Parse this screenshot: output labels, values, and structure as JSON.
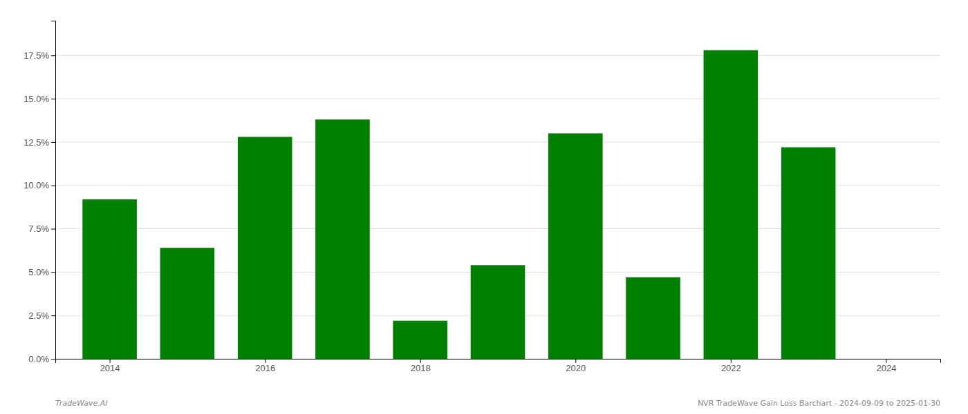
{
  "chart_data": {
    "type": "bar",
    "x": [
      2014,
      2015,
      2016,
      2017,
      2018,
      2019,
      2020,
      2021,
      2022,
      2023
    ],
    "values": [
      0.092,
      0.064,
      0.128,
      0.138,
      0.022,
      0.054,
      0.13,
      0.047,
      0.178,
      0.122
    ],
    "color": "#008000",
    "xlim": [
      2013.3,
      2024.7
    ],
    "xticks": [
      2014,
      2016,
      2018,
      2020,
      2022,
      2024
    ],
    "ylim": [
      0,
      0.195
    ],
    "yticks": [
      {
        "value": 0.0,
        "label": "0.0%"
      },
      {
        "value": 0.025,
        "label": "2.5%"
      },
      {
        "value": 0.05,
        "label": "5.0%"
      },
      {
        "value": 0.075,
        "label": "7.5%"
      },
      {
        "value": 0.1,
        "label": "10.0%"
      },
      {
        "value": 0.125,
        "label": "12.5%"
      },
      {
        "value": 0.15,
        "label": "15.0%"
      },
      {
        "value": 0.175,
        "label": "17.5%"
      }
    ],
    "grid": true,
    "annotations": [
      "TradeWave.AI",
      "NVR TradeWave Gain Loss Barchart - 2024-09-09 to 2025-01-30"
    ]
  }
}
